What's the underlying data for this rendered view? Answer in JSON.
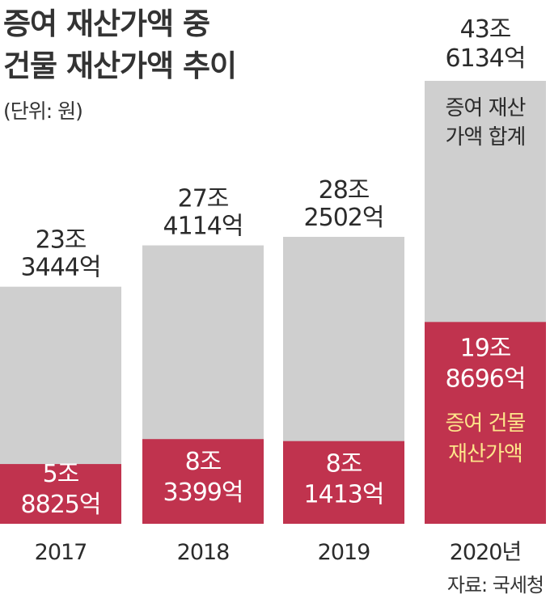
{
  "title_lines": [
    "증여 재산가액 중",
    "건물 재산가액 추이"
  ],
  "unit": "(단위: 원)",
  "source": "자료: 국세청",
  "colors": {
    "total": "#cfcfcf",
    "building": "#c0334e",
    "building_label": "#ffffff",
    "legend_building": "#fde58a",
    "text": "#2b2b2b"
  },
  "chart_data": {
    "type": "bar",
    "stacked": true,
    "title": "증여 재산가액 중 건물 재산가액 추이",
    "ylabel": "(단위: 원)",
    "categories": [
      "2017",
      "2018",
      "2019",
      "2020년"
    ],
    "series": [
      {
        "name": "증여 재산가액 합계",
        "values_eok": [
          233444,
          274114,
          282502,
          436134
        ],
        "labels": [
          [
            "23조",
            "3444억"
          ],
          [
            "27조",
            "4114억"
          ],
          [
            "28조",
            "2502억"
          ],
          [
            "43조",
            "6134억"
          ]
        ]
      },
      {
        "name": "증여 건물 재산가액",
        "values_eok": [
          58825,
          83399,
          81413,
          198696
        ],
        "labels": [
          [
            "5조",
            "8825억"
          ],
          [
            "8조",
            "3399억"
          ],
          [
            "8조",
            "1413억"
          ],
          [
            "19조",
            "8696억"
          ]
        ]
      }
    ],
    "legend_labels": [
      [
        "증여 재산",
        "가액 합계"
      ],
      [
        "증여 건물",
        "재산가액"
      ]
    ],
    "legend_placement": "inside-last-bar",
    "ylim": [
      0,
      436134
    ],
    "grid": false
  }
}
